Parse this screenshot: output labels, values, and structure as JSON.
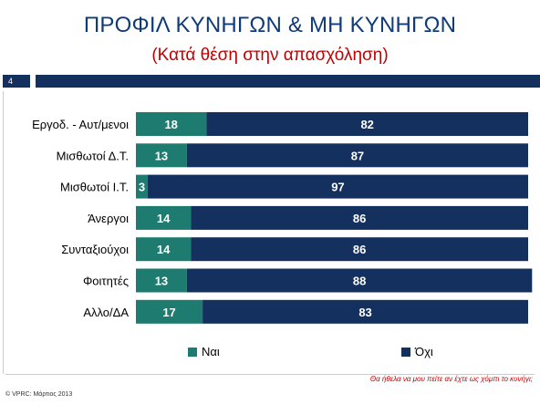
{
  "slide": {
    "title": "ΠΡΟΦΙΛ ΚΥΝΗΓΩΝ & ΜΗ ΚΥΝΗΓΩΝ",
    "subtitle": "(Κατά θέση στην απασχόληση)",
    "page_number": "4",
    "footnote": "Θα ήθελα να μου πείτε αν έχτε ως χόμπι το κυνήγι;",
    "copyright": "© VPRC: Μάρτιος 2013"
  },
  "colors": {
    "yes": "#1e7b6f",
    "no": "#14305f",
    "header_bar": "#14305f",
    "title": "#0f3b7a",
    "subtitle": "#c00000"
  },
  "chart_data": {
    "type": "bar",
    "orientation": "horizontal",
    "stacked": true,
    "categories": [
      "Εργοδ. - Αυτ/μενοι",
      "Μισθωτοί Δ.Τ.",
      "Μισθωτοί Ι.Τ.",
      "Άνεργοι",
      "Συνταξιούχοι",
      "Φοιτητές",
      "Αλλο/ΔΑ"
    ],
    "series": [
      {
        "name": "Ναι",
        "values": [
          18,
          13,
          3,
          14,
          14,
          13,
          17
        ]
      },
      {
        "name": "Όχι",
        "values": [
          82,
          87,
          97,
          86,
          86,
          88,
          83
        ]
      }
    ],
    "xlim": [
      0,
      100
    ],
    "legend_position": "bottom",
    "grid": false
  }
}
